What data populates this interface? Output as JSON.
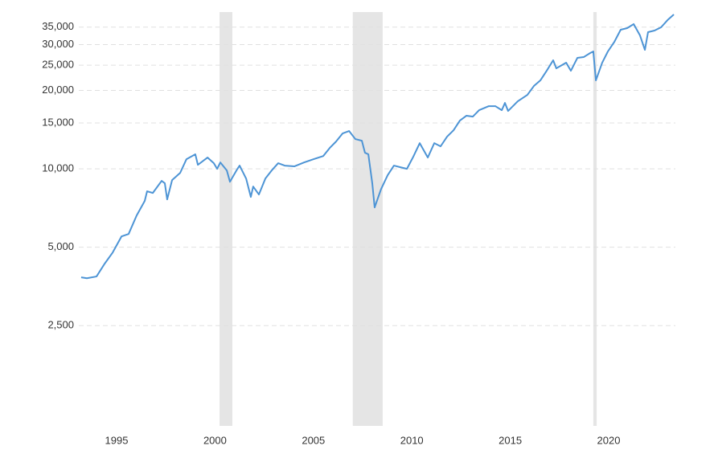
{
  "chart_data": {
    "type": "line",
    "log_scale": true,
    "grid": true,
    "color": "#4d94d5",
    "shade_color": "#e5e5e5",
    "shaded_spans": [
      [
        2000.23,
        2000.88
      ],
      [
        2007.0,
        2008.52
      ],
      [
        2019.22,
        2019.39
      ]
    ],
    "xlim": [
      1993.08,
      2023.39
    ],
    "xticks": [
      1995,
      2000,
      2005,
      2010,
      2015,
      2020
    ],
    "ylim": [
      1030,
      40000
    ],
    "yticks": [
      {
        "value": 2500,
        "label": "2,500"
      },
      {
        "value": 5000,
        "label": "5,000"
      },
      {
        "value": 10000,
        "label": "10,000"
      },
      {
        "value": 15000,
        "label": "15,000"
      },
      {
        "value": 20000,
        "label": "20,000"
      },
      {
        "value": 25000,
        "label": "25,000"
      },
      {
        "value": 30000,
        "label": "30,000"
      },
      {
        "value": 35000,
        "label": "35,000"
      }
    ],
    "x": [
      1993.2,
      1993.49,
      1993.98,
      1994.39,
      1994.8,
      1995.25,
      1995.61,
      1996.02,
      1996.43,
      1996.55,
      1996.84,
      1997.29,
      1997.45,
      1997.57,
      1997.82,
      1998.23,
      1998.55,
      1999.0,
      1999.13,
      1999.62,
      1999.94,
      2000.11,
      2000.27,
      2000.6,
      2000.76,
      2001.09,
      2001.25,
      2001.58,
      2001.82,
      2001.94,
      2002.23,
      2002.56,
      2002.88,
      2003.21,
      2003.54,
      2004.03,
      2004.52,
      2005.01,
      2005.5,
      2005.83,
      2006.15,
      2006.48,
      2006.81,
      2007.13,
      2007.46,
      2007.62,
      2007.79,
      2007.99,
      2008.11,
      2008.44,
      2008.77,
      2009.09,
      2009.42,
      2009.75,
      2010.07,
      2010.4,
      2010.81,
      2011.14,
      2011.46,
      2011.79,
      2012.12,
      2012.44,
      2012.77,
      2013.1,
      2013.42,
      2013.91,
      2014.24,
      2014.57,
      2014.73,
      2014.89,
      2015.38,
      2015.87,
      2016.2,
      2016.53,
      2016.85,
      2017.18,
      2017.34,
      2017.84,
      2018.08,
      2018.41,
      2018.73,
      2019.06,
      2019.22,
      2019.35,
      2019.67,
      2019.96,
      2020.29,
      2020.61,
      2020.94,
      2021.27,
      2021.59,
      2021.84,
      2022.0,
      2022.33,
      2022.66,
      2022.99,
      2023.31
    ],
    "values": [
      3830,
      3800,
      3860,
      4320,
      4770,
      5500,
      5620,
      6620,
      7530,
      8200,
      8080,
      8990,
      8800,
      7630,
      9050,
      9650,
      10890,
      11370,
      10360,
      11050,
      10510,
      10000,
      10580,
      9860,
      8920,
      9860,
      10290,
      9180,
      7800,
      8550,
      7970,
      9180,
      9860,
      10510,
      10290,
      10220,
      10580,
      10890,
      11200,
      12030,
      12730,
      13670,
      13970,
      13010,
      12820,
      11530,
      11370,
      8800,
      7110,
      8370,
      9450,
      10290,
      10140,
      10000,
      11120,
      12550,
      11050,
      12550,
      12200,
      13290,
      14070,
      15320,
      15990,
      15870,
      16800,
      17410,
      17410,
      16800,
      17910,
      16680,
      18170,
      19230,
      20800,
      21860,
      23800,
      26110,
      24320,
      25560,
      23800,
      26670,
      26860,
      27840,
      28240,
      21860,
      25560,
      28240,
      30750,
      34210,
      34700,
      35960,
      32550,
      28640,
      33490,
      33970,
      34950,
      37250,
      39160
    ]
  }
}
